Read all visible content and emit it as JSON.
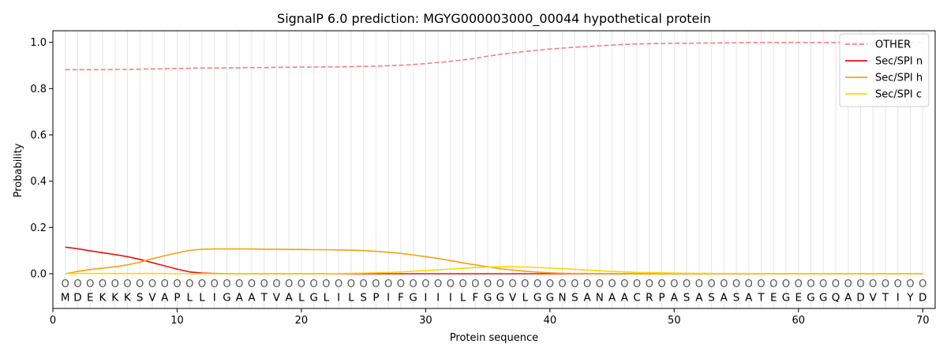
{
  "chart_data": {
    "type": "line",
    "title": "SignalP 6.0 prediction: MGYG000003000_00044 hypothetical protein",
    "xlabel": "Protein sequence",
    "ylabel": "Probability",
    "xlim": [
      0,
      71
    ],
    "ylim": [
      -0.15,
      1.05
    ],
    "xticks": [
      0,
      10,
      20,
      30,
      40,
      50,
      60,
      70
    ],
    "yticks": [
      "0.0",
      "0.2",
      "0.4",
      "0.6",
      "0.8",
      "1.0"
    ],
    "ytick_values": [
      0.0,
      0.2,
      0.4,
      0.6,
      0.8,
      1.0
    ],
    "grid": "vertical lines at each residue",
    "legend_position": "top-right",
    "sequence": [
      "M",
      "D",
      "E",
      "K",
      "K",
      "K",
      "S",
      "V",
      "A",
      "P",
      "L",
      "L",
      "I",
      "G",
      "A",
      "A",
      "T",
      "V",
      "A",
      "L",
      "G",
      "L",
      "I",
      "L",
      "S",
      "P",
      "I",
      "F",
      "G",
      "I",
      "I",
      "I",
      "L",
      "F",
      "G",
      "G",
      "V",
      "L",
      "G",
      "G",
      "N",
      "S",
      "A",
      "N",
      "A",
      "A",
      "C",
      "R",
      "P",
      "A",
      "S",
      "A",
      "S",
      "A",
      "S",
      "A",
      "T",
      "E",
      "G",
      "E",
      "G",
      "G",
      "Q",
      "A",
      "D",
      "V",
      "T",
      "I",
      "Y",
      "D"
    ],
    "residue_marker": "O",
    "x": [
      1,
      2,
      3,
      4,
      5,
      6,
      7,
      8,
      9,
      10,
      11,
      12,
      13,
      14,
      15,
      16,
      17,
      18,
      19,
      20,
      21,
      22,
      23,
      24,
      25,
      26,
      27,
      28,
      29,
      30,
      31,
      32,
      33,
      34,
      35,
      36,
      37,
      38,
      39,
      40,
      41,
      42,
      43,
      44,
      45,
      46,
      47,
      48,
      49,
      50,
      51,
      52,
      53,
      54,
      55,
      56,
      57,
      58,
      59,
      60,
      61,
      62,
      63,
      64,
      65,
      66,
      67,
      68,
      69,
      70
    ],
    "series": [
      {
        "name": "OTHER",
        "color": "#f08080",
        "style": "dashed",
        "values": [
          0.882,
          0.882,
          0.882,
          0.882,
          0.883,
          0.883,
          0.884,
          0.885,
          0.886,
          0.887,
          0.888,
          0.889,
          0.889,
          0.89,
          0.89,
          0.891,
          0.891,
          0.892,
          0.892,
          0.893,
          0.893,
          0.894,
          0.894,
          0.895,
          0.896,
          0.897,
          0.899,
          0.901,
          0.904,
          0.908,
          0.913,
          0.918,
          0.924,
          0.931,
          0.94,
          0.948,
          0.955,
          0.961,
          0.966,
          0.971,
          0.975,
          0.979,
          0.982,
          0.985,
          0.988,
          0.991,
          0.993,
          0.994,
          0.995,
          0.996,
          0.996,
          0.997,
          0.997,
          0.998,
          0.998,
          0.999,
          0.999,
          0.999,
          0.999,
          0.999,
          0.999,
          0.999,
          0.999,
          0.999,
          0.999,
          0.999,
          0.999,
          0.999,
          0.999,
          0.999
        ]
      },
      {
        "name": "Sec/SPI n",
        "color": "#e8130f",
        "style": "solid",
        "values": [
          0.115,
          0.108,
          0.099,
          0.091,
          0.083,
          0.074,
          0.062,
          0.048,
          0.034,
          0.02,
          0.008,
          0.003,
          0.001,
          0.0,
          0.0,
          0.0,
          0.0,
          0.0,
          0.0,
          0.0,
          0.0,
          0.0,
          0.0,
          0.0,
          0.0,
          0.0,
          0.0,
          0.0,
          0.0,
          0.0,
          0.0,
          0.0,
          0.0,
          0.0,
          0.0,
          0.0,
          0.0,
          0.0,
          0.0,
          0.0,
          0.0,
          0.0,
          0.0,
          0.0,
          0.0,
          0.0,
          0.0,
          0.0,
          0.0,
          0.0,
          0.0,
          0.0,
          0.0,
          0.0,
          0.0,
          0.0,
          0.0,
          0.0,
          0.0,
          0.0,
          0.0,
          0.0,
          0.0,
          0.0,
          0.0,
          0.0,
          0.0,
          0.0,
          0.0,
          0.0
        ]
      },
      {
        "name": "Sec/SPI h",
        "color": "#f5a20c",
        "style": "solid",
        "values": [
          0.0,
          0.01,
          0.018,
          0.024,
          0.03,
          0.038,
          0.05,
          0.065,
          0.078,
          0.09,
          0.101,
          0.106,
          0.107,
          0.107,
          0.107,
          0.107,
          0.106,
          0.106,
          0.105,
          0.105,
          0.104,
          0.104,
          0.103,
          0.102,
          0.1,
          0.097,
          0.093,
          0.088,
          0.081,
          0.074,
          0.066,
          0.057,
          0.047,
          0.038,
          0.03,
          0.022,
          0.016,
          0.011,
          0.007,
          0.004,
          0.002,
          0.001,
          0.001,
          0.0,
          0.0,
          0.0,
          0.0,
          0.0,
          0.0,
          0.0,
          0.0,
          0.0,
          0.0,
          0.0,
          0.0,
          0.0,
          0.0,
          0.0,
          0.0,
          0.0,
          0.0,
          0.0,
          0.0,
          0.0,
          0.0,
          0.0,
          0.0,
          0.0,
          0.0,
          0.0
        ]
      },
      {
        "name": "Sec/SPI c",
        "color": "#ffd700",
        "style": "solid",
        "values": [
          0.0,
          0.001,
          0.001,
          0.001,
          0.001,
          0.001,
          0.001,
          0.001,
          0.001,
          0.0,
          0.0,
          0.0,
          0.0,
          0.0,
          0.0,
          0.0,
          0.0,
          0.0,
          0.0,
          0.0,
          0.0,
          0.0,
          0.001,
          0.002,
          0.003,
          0.004,
          0.006,
          0.008,
          0.011,
          0.014,
          0.017,
          0.02,
          0.024,
          0.027,
          0.029,
          0.03,
          0.03,
          0.029,
          0.027,
          0.025,
          0.022,
          0.019,
          0.016,
          0.013,
          0.01,
          0.008,
          0.006,
          0.005,
          0.004,
          0.003,
          0.002,
          0.002,
          0.001,
          0.001,
          0.001,
          0.001,
          0.0,
          0.0,
          0.0,
          0.0,
          0.0,
          0.0,
          0.0,
          0.0,
          0.0,
          0.0,
          0.0,
          0.0,
          0.0,
          0.0
        ]
      }
    ]
  }
}
